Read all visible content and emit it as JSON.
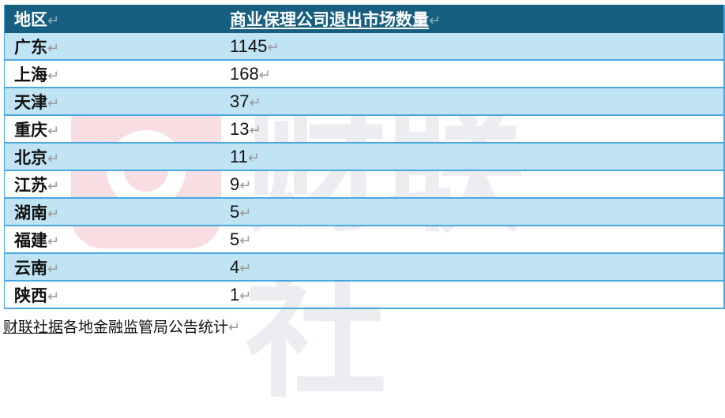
{
  "table": {
    "headers": [
      "地区",
      "商业保理公司退出市场数量"
    ],
    "rows": [
      {
        "region": "广东",
        "count": "1145"
      },
      {
        "region": "上海",
        "count": "168"
      },
      {
        "region": "天津",
        "count": "37"
      },
      {
        "region": "重庆",
        "count": "13"
      },
      {
        "region": "北京",
        "count": "11"
      },
      {
        "region": "江苏",
        "count": "9"
      },
      {
        "region": "湖南",
        "count": "5"
      },
      {
        "region": "福建",
        "count": "5"
      },
      {
        "region": "云南",
        "count": "4"
      },
      {
        "region": "陕西",
        "count": "1"
      }
    ]
  },
  "paragraph_mark": "↵",
  "footer": {
    "brand": "财联社据",
    "text": "各地金融监管局公告统计"
  },
  "watermark": {
    "text": "财联社"
  },
  "colors": {
    "header_bg": "#175f80",
    "alt_row_bg": "#c1e4f4",
    "border": "#4aa8e0"
  }
}
